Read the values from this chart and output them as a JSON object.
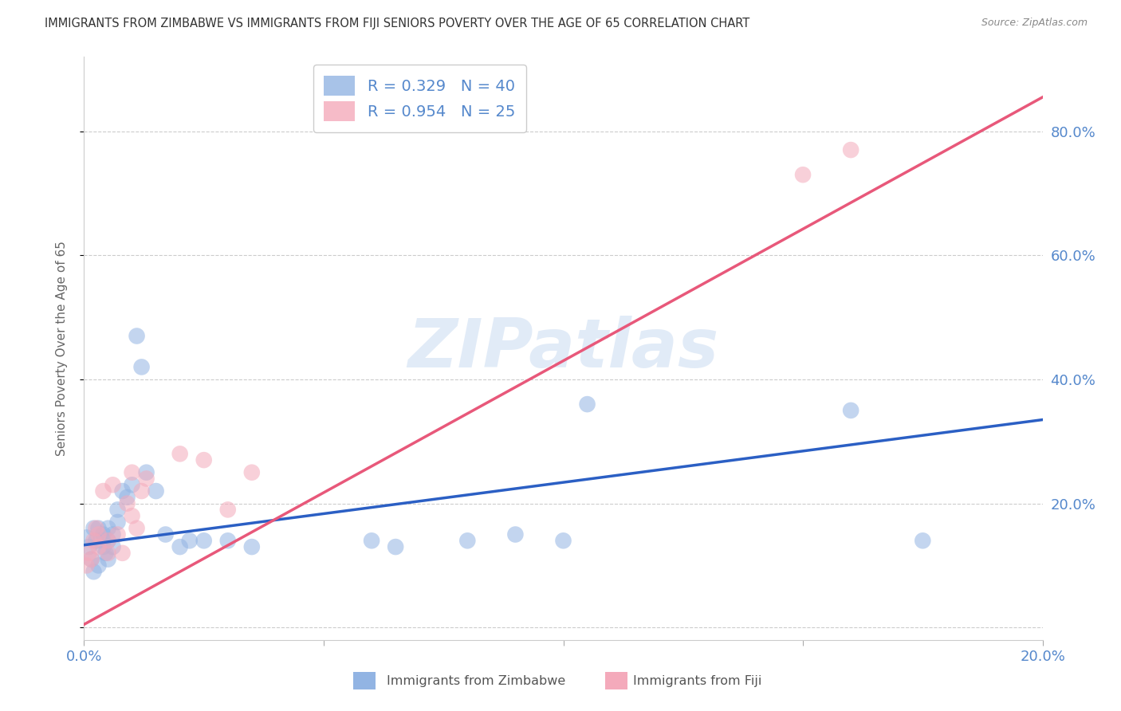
{
  "title": "IMMIGRANTS FROM ZIMBABWE VS IMMIGRANTS FROM FIJI SENIORS POVERTY OVER THE AGE OF 65 CORRELATION CHART",
  "source": "Source: ZipAtlas.com",
  "ylabel": "Seniors Poverty Over the Age of 65",
  "watermark": "ZIPatlas",
  "R_zimbabwe": 0.329,
  "N_zimbabwe": 40,
  "R_fiji": 0.954,
  "N_fiji": 25,
  "xlim": [
    0.0,
    0.2
  ],
  "ylim": [
    -0.02,
    0.92
  ],
  "yticks": [
    0.0,
    0.2,
    0.4,
    0.6,
    0.8
  ],
  "xticks": [
    0.0,
    0.05,
    0.1,
    0.15,
    0.2
  ],
  "color_zimbabwe": "#92B4E3",
  "color_fiji": "#F4AABB",
  "color_line_zimbabwe": "#2B5FC4",
  "color_line_fiji": "#E8587A",
  "color_tick_label": "#5588CC",
  "background_color": "#FFFFFF",
  "grid_color": "#CCCCCC",
  "title_color": "#333333",
  "right_ytick_labels": [
    "20.0%",
    "40.0%",
    "60.0%",
    "80.0%"
  ],
  "right_yticks": [
    0.2,
    0.4,
    0.6,
    0.8
  ],
  "legend_label_zimbabwe": "Immigrants from Zimbabwe",
  "legend_label_fiji": "Immigrants from Fiji",
  "zim_line_x0": 0.0,
  "zim_line_y0": 0.133,
  "zim_line_x1": 0.2,
  "zim_line_y1": 0.335,
  "fiji_line_x0": 0.0,
  "fiji_line_y0": 0.005,
  "fiji_line_x1": 0.2,
  "fiji_line_y1": 0.855,
  "zimbabwe_x": [
    0.0005,
    0.001,
    0.0015,
    0.002,
    0.002,
    0.0025,
    0.003,
    0.003,
    0.0035,
    0.004,
    0.004,
    0.0045,
    0.005,
    0.005,
    0.005,
    0.006,
    0.006,
    0.007,
    0.007,
    0.008,
    0.009,
    0.01,
    0.011,
    0.012,
    0.013,
    0.015,
    0.017,
    0.02,
    0.022,
    0.025,
    0.03,
    0.035,
    0.06,
    0.065,
    0.08,
    0.09,
    0.1,
    0.105,
    0.16,
    0.175
  ],
  "zimbabwe_y": [
    0.145,
    0.13,
    0.11,
    0.09,
    0.16,
    0.14,
    0.1,
    0.16,
    0.14,
    0.13,
    0.15,
    0.12,
    0.11,
    0.14,
    0.16,
    0.15,
    0.13,
    0.17,
    0.19,
    0.22,
    0.21,
    0.23,
    0.47,
    0.42,
    0.25,
    0.22,
    0.15,
    0.13,
    0.14,
    0.14,
    0.14,
    0.13,
    0.14,
    0.13,
    0.14,
    0.15,
    0.14,
    0.36,
    0.35,
    0.14
  ],
  "fiji_x": [
    0.0005,
    0.001,
    0.0015,
    0.002,
    0.0025,
    0.003,
    0.003,
    0.004,
    0.005,
    0.005,
    0.006,
    0.007,
    0.008,
    0.009,
    0.01,
    0.01,
    0.011,
    0.012,
    0.013,
    0.02,
    0.025,
    0.03,
    0.035,
    0.15,
    0.16
  ],
  "fiji_y": [
    0.1,
    0.12,
    0.11,
    0.14,
    0.16,
    0.13,
    0.15,
    0.22,
    0.12,
    0.14,
    0.23,
    0.15,
    0.12,
    0.2,
    0.18,
    0.25,
    0.16,
    0.22,
    0.24,
    0.28,
    0.27,
    0.19,
    0.25,
    0.73,
    0.77
  ]
}
